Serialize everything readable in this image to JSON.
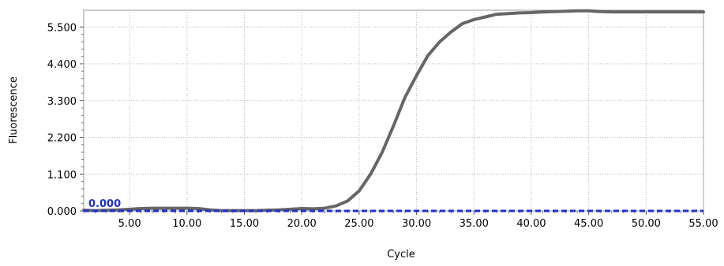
{
  "chart_data": {
    "type": "line",
    "xlabel": "Cycle",
    "ylabel": "Fluorescence",
    "xlim": [
      1,
      55
    ],
    "ylim": [
      0,
      6
    ],
    "grid": true,
    "x_ticks": [
      5,
      10,
      15,
      20,
      25,
      30,
      35,
      40,
      45,
      50,
      55
    ],
    "x_tick_labels": [
      "5.00",
      "10.00",
      "15.00",
      "20.00",
      "25.00",
      "30.00",
      "35.00",
      "40.00",
      "45.00",
      "50.00",
      "55.00"
    ],
    "y_ticks": [
      0,
      1.1,
      2.2,
      3.3,
      4.4,
      5.5
    ],
    "y_tick_labels": [
      "0.000",
      "1.100",
      "2.200",
      "3.300",
      "4.400",
      "5.500"
    ],
    "series": [
      {
        "color": "#666666",
        "x": [
          1,
          2,
          3,
          4,
          5,
          6,
          7,
          8,
          9,
          10,
          11,
          12,
          13,
          14,
          15,
          16,
          17,
          18,
          19,
          20,
          21,
          22,
          23,
          24,
          25,
          26,
          27,
          28,
          29,
          30,
          31,
          32,
          33,
          34,
          35,
          36,
          37,
          38,
          39,
          40,
          41,
          42,
          43,
          44,
          45,
          46,
          47,
          48,
          49,
          50,
          51,
          52,
          53,
          54,
          55
        ],
        "y": [
          0.02,
          0.01,
          0.02,
          0.03,
          0.05,
          0.07,
          0.08,
          0.08,
          0.08,
          0.08,
          0.07,
          0.03,
          0.01,
          0.01,
          0.01,
          0.01,
          0.02,
          0.03,
          0.05,
          0.07,
          0.06,
          0.08,
          0.15,
          0.3,
          0.6,
          1.1,
          1.75,
          2.55,
          3.4,
          4.05,
          4.65,
          5.05,
          5.35,
          5.6,
          5.72,
          5.8,
          5.88,
          5.9,
          5.92,
          5.93,
          5.95,
          5.96,
          5.97,
          5.98,
          5.98,
          5.96,
          5.95,
          5.95,
          5.95,
          5.95,
          5.95,
          5.95,
          5.95,
          5.95,
          5.95
        ]
      }
    ],
    "threshold": {
      "value": 0,
      "label": "0.000",
      "color": "#1f2fd0"
    }
  }
}
